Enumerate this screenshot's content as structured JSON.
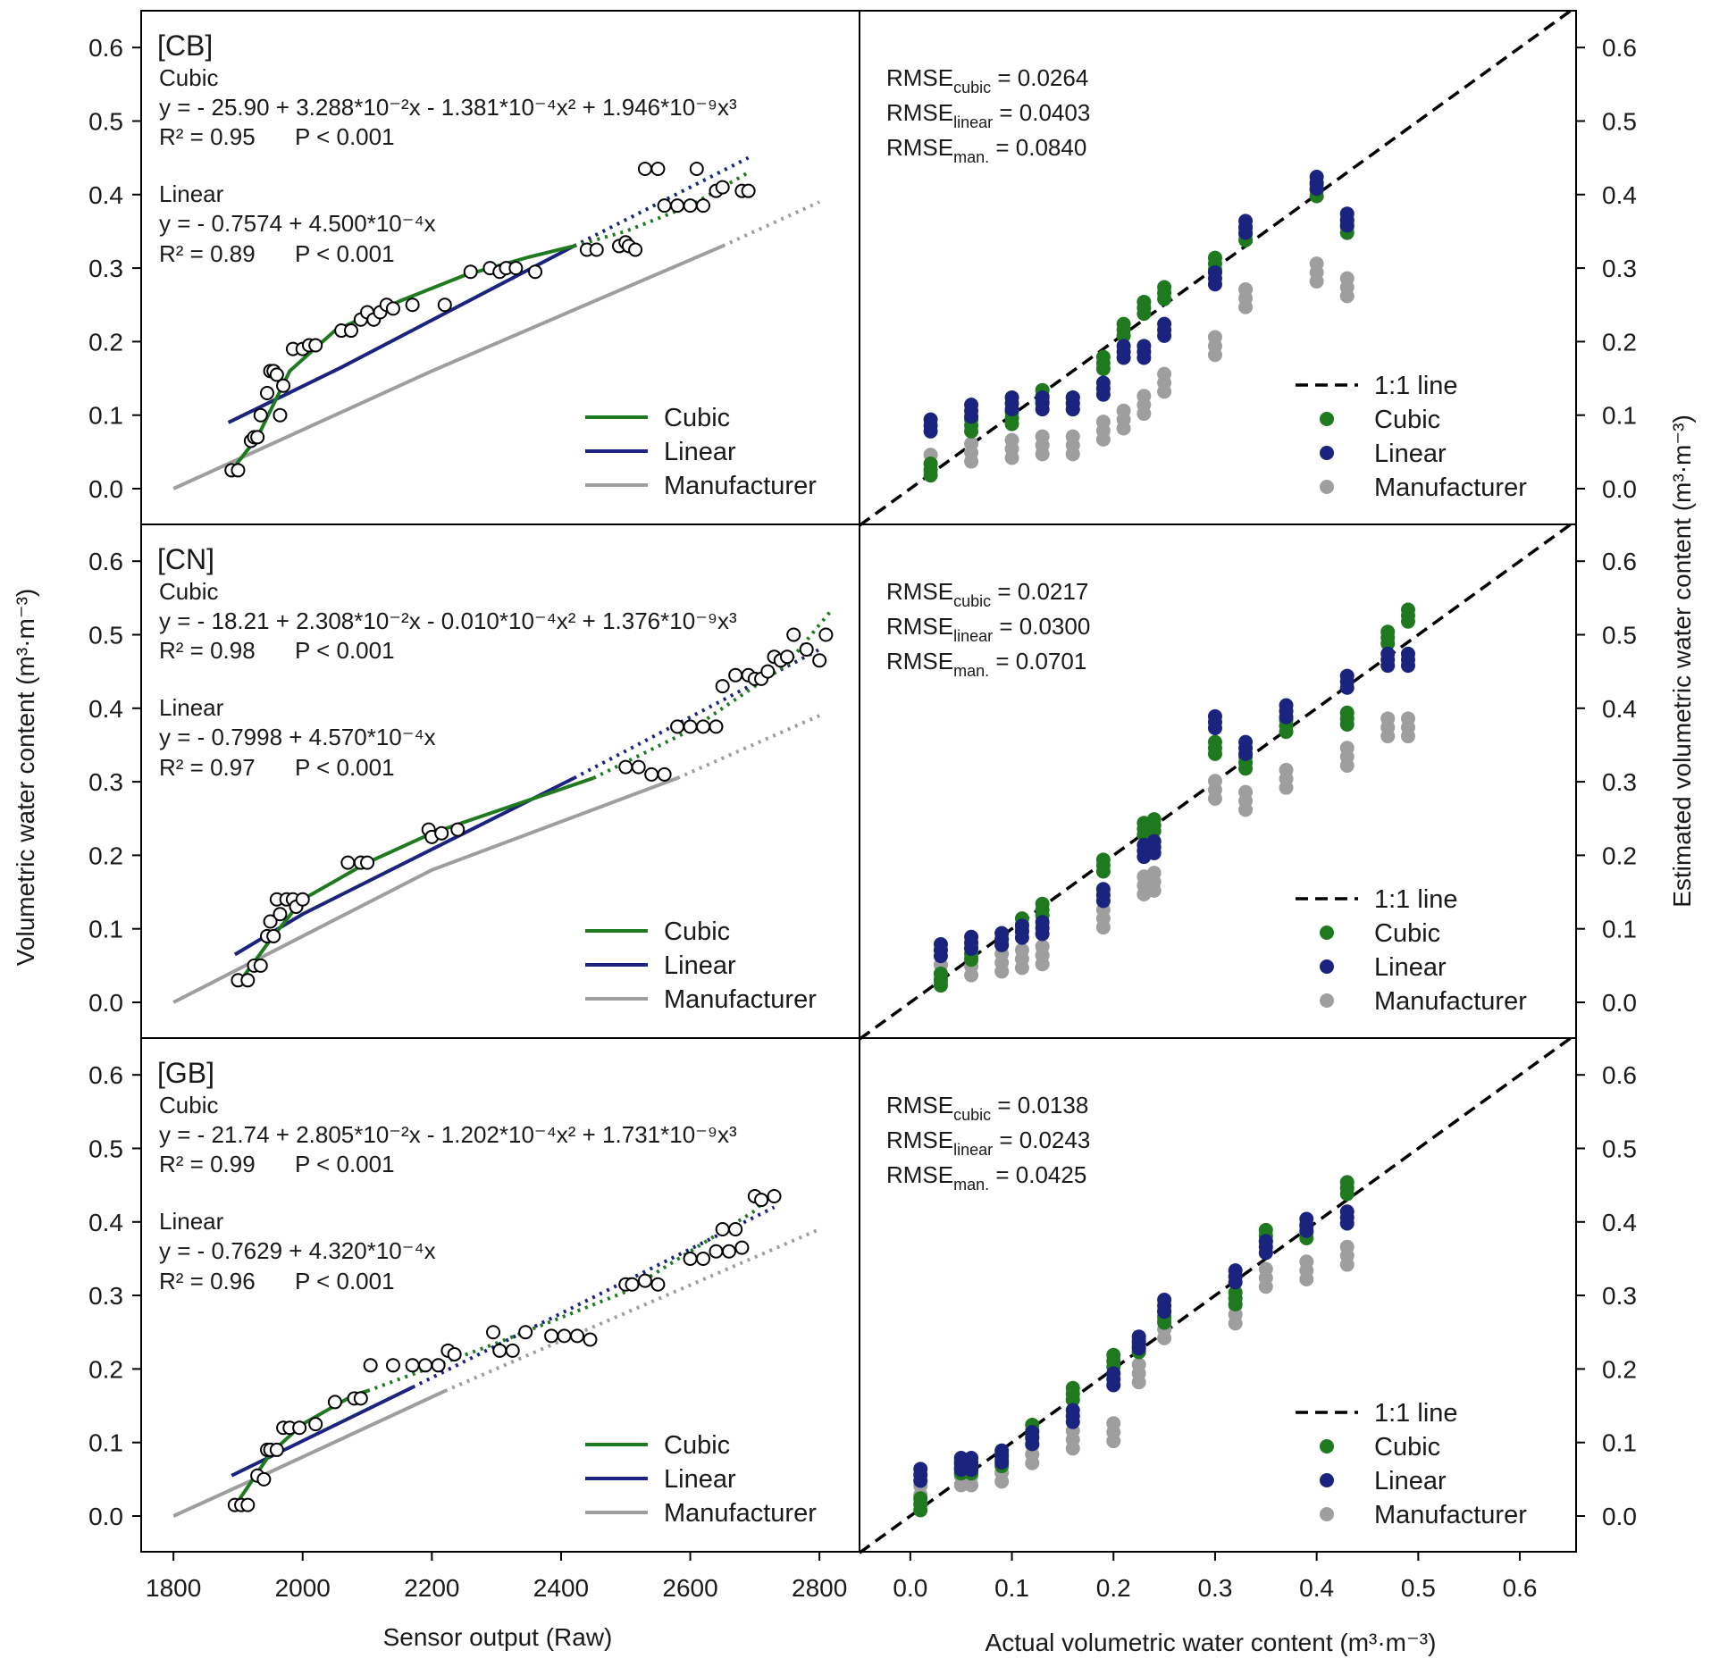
{
  "axes": {
    "left_xlabel": "Sensor output (Raw)",
    "right_xlabel": "Actual volumetric water content (m³·m⁻³)",
    "left_ylabel": "Volumetric water content (m³·m⁻³)",
    "right_ylabel": "Estimated volumetric water content (m³·m⁻³)",
    "left_xticks": [
      "1800",
      "2000",
      "2200",
      "2400",
      "2600",
      "2800"
    ],
    "right_xticks": [
      "0.0",
      "0.1",
      "0.2",
      "0.3",
      "0.4",
      "0.5",
      "0.6"
    ],
    "yticks": [
      "0.0",
      "0.1",
      "0.2",
      "0.3",
      "0.4",
      "0.5",
      "0.6"
    ]
  },
  "legends": {
    "left": [
      "Cubic",
      "Linear",
      "Manufacturer"
    ],
    "right": [
      "1:1 line",
      "Cubic",
      "Linear",
      "Manufacturer"
    ]
  },
  "colors": {
    "cubic": "#1f7a1f",
    "linear": "#1a237e",
    "manufacturer": "#9e9e9e",
    "one_to_one": "#000000",
    "points": "#ffffff"
  },
  "chart_data": [
    {
      "panel": "CB",
      "label": "[CB]",
      "type": "scatter",
      "xlim": [
        1750,
        2850
      ],
      "ylim": [
        -0.05,
        0.65
      ],
      "eq": {
        "cubic_title": "Cubic",
        "cubic_eq": "y = - 25.90 + 3.288*10⁻²x - 1.381*10⁻⁴x² + 1.946*10⁻⁹x³",
        "cubic_r2": "R² = 0.95",
        "cubic_p": "P < 0.001",
        "linear_title": "Linear",
        "linear_eq": "y = - 0.7574 + 4.500*10⁻⁴x",
        "linear_r2": "R² = 0.89",
        "linear_p": "P < 0.001"
      },
      "rmse": {
        "cubic": "RMSE",
        "cubic_sub": "cubic",
        "cubic_val": "= 0.0264",
        "linear": "RMSE",
        "linear_sub": "linear",
        "linear_val": "= 0.0403",
        "man": "RMSE",
        "man_sub": "man.",
        "man_val": "= 0.0840"
      },
      "obs_x": [
        1890,
        1900,
        1920,
        1925,
        1930,
        1935,
        1945,
        1950,
        1955,
        1960,
        1965,
        1970,
        1985,
        2000,
        2010,
        2020,
        2060,
        2075,
        2090,
        2100,
        2110,
        2120,
        2130,
        2140,
        2170,
        2220,
        2260,
        2290,
        2305,
        2315,
        2330,
        2360,
        2440,
        2455,
        2490,
        2500,
        2505,
        2515,
        2530,
        2550,
        2560,
        2580,
        2600,
        2610,
        2620,
        2640,
        2650,
        2680,
        2690
      ],
      "obs_y": [
        0.025,
        0.025,
        0.065,
        0.07,
        0.07,
        0.1,
        0.13,
        0.16,
        0.16,
        0.155,
        0.1,
        0.14,
        0.19,
        0.19,
        0.195,
        0.195,
        0.215,
        0.215,
        0.23,
        0.24,
        0.23,
        0.24,
        0.25,
        0.245,
        0.25,
        0.25,
        0.295,
        0.3,
        0.295,
        0.3,
        0.3,
        0.295,
        0.325,
        0.325,
        0.33,
        0.335,
        0.33,
        0.325,
        0.435,
        0.435,
        0.385,
        0.385,
        0.385,
        0.435,
        0.385,
        0.405,
        0.41,
        0.405,
        0.405
      ],
      "fit_cubic": {
        "x": [
          1890,
          1930,
          1980,
          2050,
          2150,
          2250,
          2350,
          2420
        ],
        "y": [
          0.025,
          0.07,
          0.16,
          0.215,
          0.255,
          0.29,
          0.315,
          0.33
        ],
        "x2": [
          2420,
          2500,
          2600,
          2690
        ],
        "y2": [
          0.33,
          0.35,
          0.385,
          0.43
        ]
      },
      "fit_linear": {
        "x": [
          1885,
          2060,
          2420
        ],
        "y": [
          0.09,
          0.165,
          0.33
        ],
        "x2": [
          2420,
          2690
        ],
        "y2": [
          0.33,
          0.45
        ]
      },
      "fit_man": {
        "x": [
          1800,
          2200,
          2650
        ],
        "y": [
          0.0,
          0.16,
          0.33
        ],
        "x2": [
          2650,
          2800
        ],
        "y2": [
          0.33,
          0.39
        ]
      },
      "est": {
        "actual": [
          0.02,
          0.06,
          0.1,
          0.13,
          0.16,
          0.19,
          0.21,
          0.23,
          0.25,
          0.3,
          0.33,
          0.4,
          0.43
        ],
        "cubic": [
          0.03,
          0.09,
          0.1,
          0.13,
          0.12,
          0.175,
          0.22,
          0.25,
          0.27,
          0.31,
          0.35,
          0.41,
          0.36
        ],
        "linear": [
          0.09,
          0.11,
          0.12,
          0.12,
          0.12,
          0.14,
          0.19,
          0.19,
          0.22,
          0.29,
          0.36,
          0.42,
          0.37
        ],
        "man": [
          0.04,
          0.055,
          0.06,
          0.065,
          0.065,
          0.085,
          0.1,
          0.12,
          0.15,
          0.2,
          0.265,
          0.3,
          0.28
        ]
      }
    },
    {
      "panel": "CN",
      "label": "[CN]",
      "type": "scatter",
      "xlim": [
        1750,
        2850
      ],
      "ylim": [
        -0.05,
        0.65
      ],
      "eq": {
        "cubic_title": "Cubic",
        "cubic_eq": "y = - 18.21 + 2.308*10⁻²x - 0.010*10⁻⁴x² + 1.376*10⁻⁹x³",
        "cubic_r2": "R² = 0.98",
        "cubic_p": "P < 0.001",
        "linear_title": "Linear",
        "linear_eq": "y = - 0.7998 + 4.570*10⁻⁴x",
        "linear_r2": "R² = 0.97",
        "linear_p": "P < 0.001"
      },
      "rmse": {
        "cubic": "RMSE",
        "cubic_sub": "cubic",
        "cubic_val": "= 0.0217",
        "linear": "RMSE",
        "linear_sub": "linear",
        "linear_val": "= 0.0300",
        "man": "RMSE",
        "man_sub": "man.",
        "man_val": "= 0.0701"
      },
      "obs_x": [
        1900,
        1915,
        1925,
        1935,
        1945,
        1950,
        1955,
        1960,
        1965,
        1975,
        1985,
        1990,
        2000,
        2070,
        2090,
        2100,
        2195,
        2200,
        2215,
        2240,
        2500,
        2520,
        2540,
        2560,
        2580,
        2600,
        2620,
        2640,
        2650,
        2670,
        2690,
        2700,
        2710,
        2720,
        2730,
        2740,
        2750,
        2760,
        2780,
        2800,
        2810
      ],
      "obs_y": [
        0.03,
        0.03,
        0.05,
        0.05,
        0.09,
        0.11,
        0.09,
        0.14,
        0.12,
        0.14,
        0.14,
        0.13,
        0.14,
        0.19,
        0.19,
        0.19,
        0.235,
        0.225,
        0.23,
        0.235,
        0.32,
        0.32,
        0.31,
        0.31,
        0.375,
        0.375,
        0.375,
        0.375,
        0.43,
        0.445,
        0.445,
        0.44,
        0.44,
        0.45,
        0.47,
        0.465,
        0.47,
        0.5,
        0.48,
        0.465,
        0.5
      ],
      "fit_cubic": {
        "x": [
          1900,
          1950,
          2000,
          2100,
          2200,
          2300,
          2450
        ],
        "y": [
          0.025,
          0.085,
          0.14,
          0.19,
          0.23,
          0.26,
          0.305
        ],
        "x2": [
          2450,
          2600,
          2750,
          2820
        ],
        "y2": [
          0.305,
          0.37,
          0.46,
          0.535
        ]
      },
      "fit_linear": {
        "x": [
          1895,
          2000,
          2420
        ],
        "y": [
          0.065,
          0.12,
          0.305
        ],
        "x2": [
          2420,
          2800
        ],
        "y2": [
          0.305,
          0.48
        ]
      },
      "fit_man": {
        "x": [
          1800,
          2200,
          2580
        ],
        "y": [
          0.0,
          0.18,
          0.305
        ],
        "x2": [
          2580,
          2800
        ],
        "y2": [
          0.305,
          0.39
        ]
      },
      "est": {
        "actual": [
          0.03,
          0.06,
          0.09,
          0.11,
          0.13,
          0.19,
          0.23,
          0.24,
          0.3,
          0.33,
          0.37,
          0.43,
          0.47,
          0.49
        ],
        "cubic": [
          0.035,
          0.07,
          0.09,
          0.11,
          0.13,
          0.19,
          0.24,
          0.245,
          0.35,
          0.33,
          0.38,
          0.39,
          0.5,
          0.53
        ],
        "linear": [
          0.075,
          0.085,
          0.09,
          0.1,
          0.105,
          0.15,
          0.21,
          0.215,
          0.385,
          0.35,
          0.4,
          0.44,
          0.47,
          0.47
        ],
        "man": [
          0.045,
          0.055,
          0.06,
          0.065,
          0.07,
          0.12,
          0.165,
          0.17,
          0.295,
          0.28,
          0.31,
          0.34,
          0.38,
          0.38
        ]
      }
    },
    {
      "panel": "GB",
      "label": "[GB]",
      "type": "scatter",
      "xlim": [
        1750,
        2850
      ],
      "ylim": [
        -0.05,
        0.65
      ],
      "eq": {
        "cubic_title": "Cubic",
        "cubic_eq": "y = - 21.74 + 2.805*10⁻²x - 1.202*10⁻⁴x² + 1.731*10⁻⁹x³",
        "cubic_r2": "R² = 0.99",
        "cubic_p": "P < 0.001",
        "linear_title": "Linear",
        "linear_eq": "y = - 0.7629 + 4.320*10⁻⁴x",
        "linear_r2": "R² = 0.96",
        "linear_p": "P < 0.001"
      },
      "rmse": {
        "cubic": "RMSE",
        "cubic_sub": "cubic",
        "cubic_val": "= 0.0138",
        "linear": "RMSE",
        "linear_sub": "linear",
        "linear_val": "= 0.0243",
        "man": "RMSE",
        "man_sub": "man.",
        "man_val": "= 0.0425"
      },
      "obs_x": [
        1895,
        1905,
        1915,
        1930,
        1940,
        1945,
        1950,
        1960,
        1970,
        1980,
        1995,
        2020,
        2050,
        2080,
        2090,
        2105,
        2140,
        2170,
        2190,
        2210,
        2225,
        2235,
        2295,
        2305,
        2325,
        2345,
        2385,
        2405,
        2425,
        2445,
        2500,
        2510,
        2530,
        2550,
        2600,
        2620,
        2640,
        2650,
        2660,
        2670,
        2680,
        2700,
        2710,
        2730
      ],
      "obs_y": [
        0.015,
        0.015,
        0.015,
        0.055,
        0.05,
        0.09,
        0.09,
        0.09,
        0.12,
        0.12,
        0.12,
        0.125,
        0.155,
        0.16,
        0.16,
        0.205,
        0.205,
        0.205,
        0.205,
        0.205,
        0.225,
        0.22,
        0.25,
        0.225,
        0.225,
        0.25,
        0.245,
        0.245,
        0.245,
        0.24,
        0.315,
        0.315,
        0.32,
        0.315,
        0.35,
        0.35,
        0.36,
        0.39,
        0.36,
        0.39,
        0.365,
        0.435,
        0.43,
        0.435
      ],
      "fit_cubic": {
        "x": [
          1900,
          1950,
          2000,
          2080,
          2100
        ],
        "y": [
          0.02,
          0.085,
          0.125,
          0.165,
          0.17
        ],
        "x2": [
          2100,
          2300,
          2500,
          2700,
          2730
        ],
        "y2": [
          0.17,
          0.235,
          0.305,
          0.415,
          0.445
        ]
      },
      "fit_linear": {
        "x": [
          1890,
          2170
        ],
        "y": [
          0.055,
          0.175
        ],
        "x2": [
          2170,
          2730
        ],
        "y2": [
          0.175,
          0.42
        ]
      },
      "fit_man": {
        "x": [
          1800,
          1950,
          2220
        ],
        "y": [
          0.0,
          0.06,
          0.17
        ],
        "x2": [
          2220,
          2800
        ],
        "y2": [
          0.17,
          0.39
        ]
      },
      "est": {
        "actual": [
          0.01,
          0.05,
          0.06,
          0.09,
          0.12,
          0.16,
          0.2,
          0.225,
          0.25,
          0.32,
          0.35,
          0.39,
          0.43
        ],
        "cubic": [
          0.02,
          0.07,
          0.07,
          0.08,
          0.12,
          0.17,
          0.215,
          0.235,
          0.275,
          0.3,
          0.385,
          0.39,
          0.45
        ],
        "linear": [
          0.06,
          0.075,
          0.075,
          0.085,
          0.11,
          0.14,
          0.19,
          0.24,
          0.29,
          0.33,
          0.37,
          0.4,
          0.41
        ],
        "man": [
          0.035,
          0.06,
          0.06,
          0.065,
          0.09,
          0.11,
          0.12,
          0.2,
          0.26,
          0.28,
          0.33,
          0.34,
          0.36
        ]
      }
    }
  ]
}
